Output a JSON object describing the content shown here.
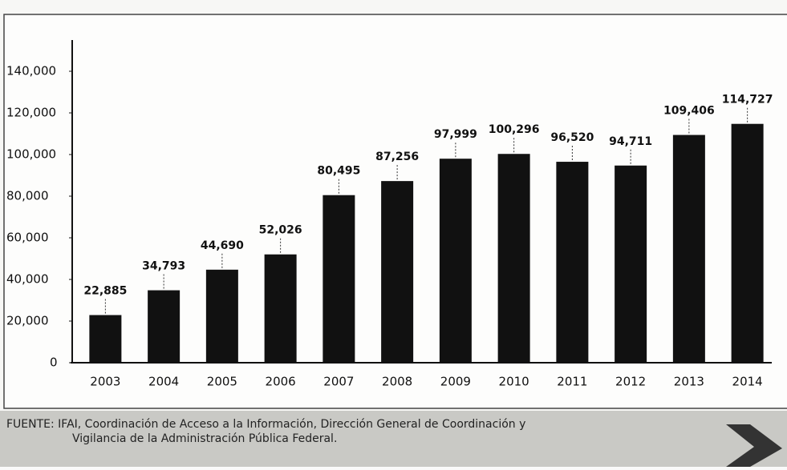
{
  "chart_data": {
    "type": "bar",
    "categories": [
      "2003",
      "2004",
      "2005",
      "2006",
      "2007",
      "2008",
      "2009",
      "2010",
      "2011",
      "2012",
      "2013",
      "2014"
    ],
    "values": [
      22885,
      34793,
      44690,
      52026,
      80495,
      87256,
      97999,
      100296,
      96520,
      94711,
      109406,
      114727
    ],
    "value_labels": [
      "22,885",
      "34,793",
      "44,690",
      "52,026",
      "80,495",
      "87,256",
      "97,999",
      "100,296",
      "96,520",
      "94,711",
      "109,406",
      "114,727"
    ],
    "color": "#111111",
    "ylim": [
      0,
      155000
    ],
    "yticks": [
      0,
      {
        "value": 20000,
        "label": "20,000"
      },
      {
        "value": 40000,
        "label": "40,000"
      },
      {
        "value": 60000,
        "label": "60,000"
      },
      {
        "value": 80000,
        "label": "80,000"
      },
      {
        "value": 100000,
        "label": "100,000"
      },
      {
        "value": 120000,
        "label": "120,000"
      },
      {
        "value": 140000,
        "label": "140,000"
      }
    ],
    "grid": false,
    "source_lines": [
      "FUENTE: IFAI, Coordinación de Acceso a la Información, Dirección General de Coordinación y",
      "Vigilancia de la Administración Pública Federal."
    ]
  }
}
